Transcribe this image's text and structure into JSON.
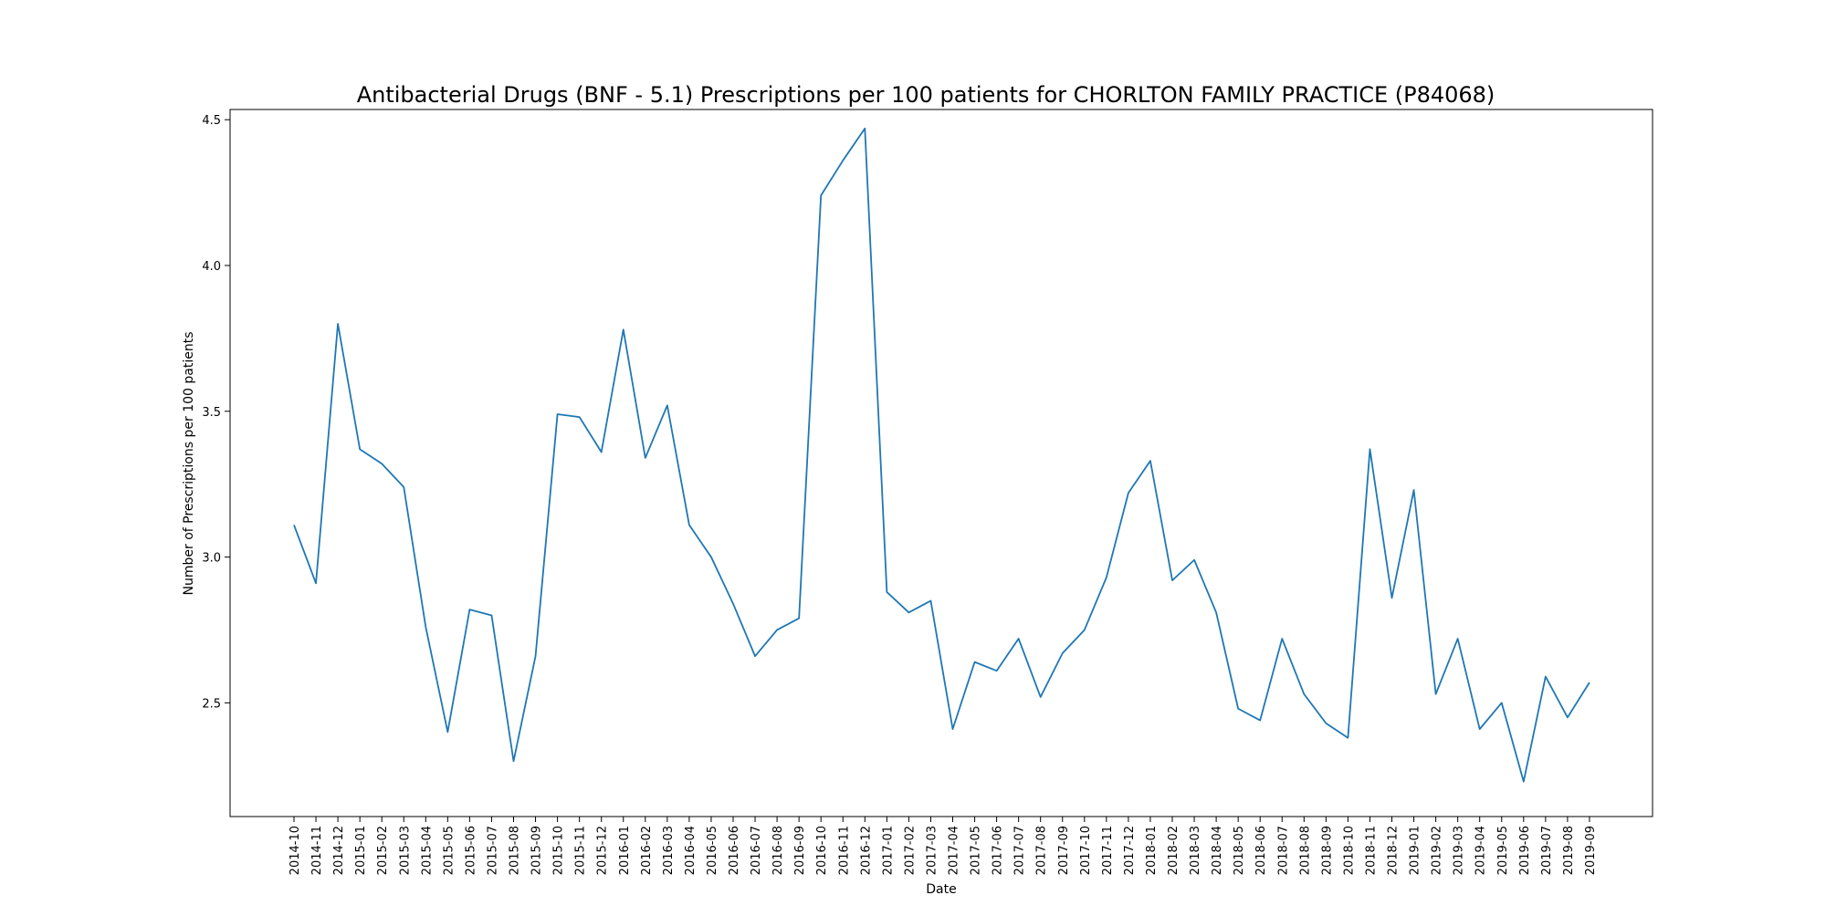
{
  "chart_data": {
    "type": "line",
    "title": "Antibacterial Drugs (BNF - 5.1) Prescriptions per 100 patients for CHORLTON FAMILY PRACTICE (P84068)",
    "xlabel": "Date",
    "ylabel": "Number of Prescriptions per 100 patients",
    "ylim": [
      2.11,
      4.535
    ],
    "yticks": [
      "2.5",
      "3.0",
      "3.5",
      "4.0",
      "4.5"
    ],
    "grid": false,
    "line_color": "#1f77b4",
    "categories": [
      "2014-10",
      "2014-11",
      "2014-12",
      "2015-01",
      "2015-02",
      "2015-03",
      "2015-04",
      "2015-05",
      "2015-06",
      "2015-07",
      "2015-08",
      "2015-09",
      "2015-10",
      "2015-11",
      "2015-12",
      "2016-01",
      "2016-02",
      "2016-03",
      "2016-04",
      "2016-05",
      "2016-06",
      "2016-07",
      "2016-08",
      "2016-09",
      "2016-10",
      "2016-11",
      "2016-12",
      "2017-01",
      "2017-02",
      "2017-03",
      "2017-04",
      "2017-05",
      "2017-06",
      "2017-07",
      "2017-08",
      "2017-09",
      "2017-10",
      "2017-11",
      "2017-12",
      "2018-01",
      "2018-02",
      "2018-03",
      "2018-04",
      "2018-05",
      "2018-06",
      "2018-07",
      "2018-08",
      "2018-09",
      "2018-10",
      "2018-11",
      "2018-12",
      "2019-01",
      "2019-02",
      "2019-03",
      "2019-04",
      "2019-05",
      "2019-06",
      "2019-07",
      "2019-08",
      "2019-09"
    ],
    "values": [
      3.11,
      2.91,
      3.8,
      3.37,
      3.32,
      3.24,
      2.76,
      2.4,
      2.82,
      2.8,
      2.3,
      2.66,
      3.49,
      3.48,
      3.36,
      3.78,
      3.34,
      3.52,
      3.11,
      3.0,
      2.84,
      2.66,
      2.75,
      2.79,
      4.24,
      4.36,
      4.47,
      2.88,
      2.81,
      2.85,
      2.41,
      2.64,
      2.61,
      2.72,
      2.52,
      2.67,
      2.75,
      2.93,
      3.22,
      3.33,
      2.92,
      2.99,
      2.81,
      2.48,
      2.44,
      2.72,
      2.53,
      2.43,
      2.38,
      3.37,
      2.86,
      3.23,
      2.53,
      2.72,
      2.41,
      2.5,
      2.23,
      2.59,
      2.45,
      2.57
    ]
  }
}
